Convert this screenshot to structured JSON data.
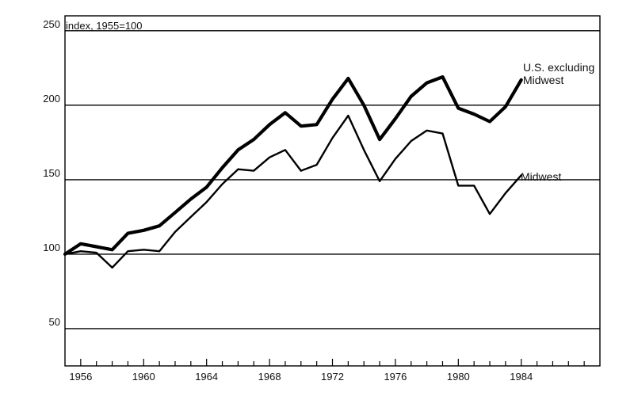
{
  "chart_data": {
    "type": "line",
    "title": "",
    "ylabel": "index, 1955=100",
    "xlabel": "",
    "ylim": [
      25,
      260
    ],
    "xlim": [
      1955,
      1989
    ],
    "yticks": [
      50,
      100,
      150,
      200,
      250
    ],
    "xticks": [
      1956,
      1960,
      1964,
      1968,
      1972,
      1976,
      1980,
      1984
    ],
    "grid": "horizontal",
    "legend": "inline-labels",
    "series": [
      {
        "name": "U.S. excluding Midwest",
        "label_lines": [
          "U.S. excluding",
          "Midwest"
        ],
        "color": "#000000",
        "weight": "heavy",
        "x": [
          1955,
          1956,
          1957,
          1958,
          1959,
          1960,
          1961,
          1962,
          1963,
          1964,
          1965,
          1966,
          1967,
          1968,
          1969,
          1970,
          1971,
          1972,
          1973,
          1974,
          1975,
          1976,
          1977,
          1978,
          1979,
          1980,
          1981,
          1982,
          1983,
          1984
        ],
        "values": [
          100,
          107,
          105,
          103,
          114,
          116,
          119,
          128,
          137,
          145,
          158,
          170,
          177,
          187,
          195,
          186,
          187,
          204,
          218,
          200,
          177,
          191,
          206,
          215,
          219,
          198,
          194,
          189,
          199,
          217
        ]
      },
      {
        "name": "Midwest",
        "label_lines": [
          "Midwest"
        ],
        "color": "#000000",
        "weight": "light",
        "x": [
          1955,
          1956,
          1957,
          1958,
          1959,
          1960,
          1961,
          1962,
          1963,
          1964,
          1965,
          1966,
          1967,
          1968,
          1969,
          1970,
          1971,
          1972,
          1973,
          1974,
          1975,
          1976,
          1977,
          1978,
          1979,
          1980,
          1981,
          1982,
          1983,
          1984
        ],
        "values": [
          100,
          102,
          101,
          91,
          102,
          103,
          102,
          115,
          125,
          135,
          147,
          157,
          156,
          165,
          170,
          156,
          160,
          178,
          193,
          170,
          149,
          164,
          176,
          183,
          181,
          146,
          146,
          127,
          141,
          153
        ]
      }
    ]
  }
}
